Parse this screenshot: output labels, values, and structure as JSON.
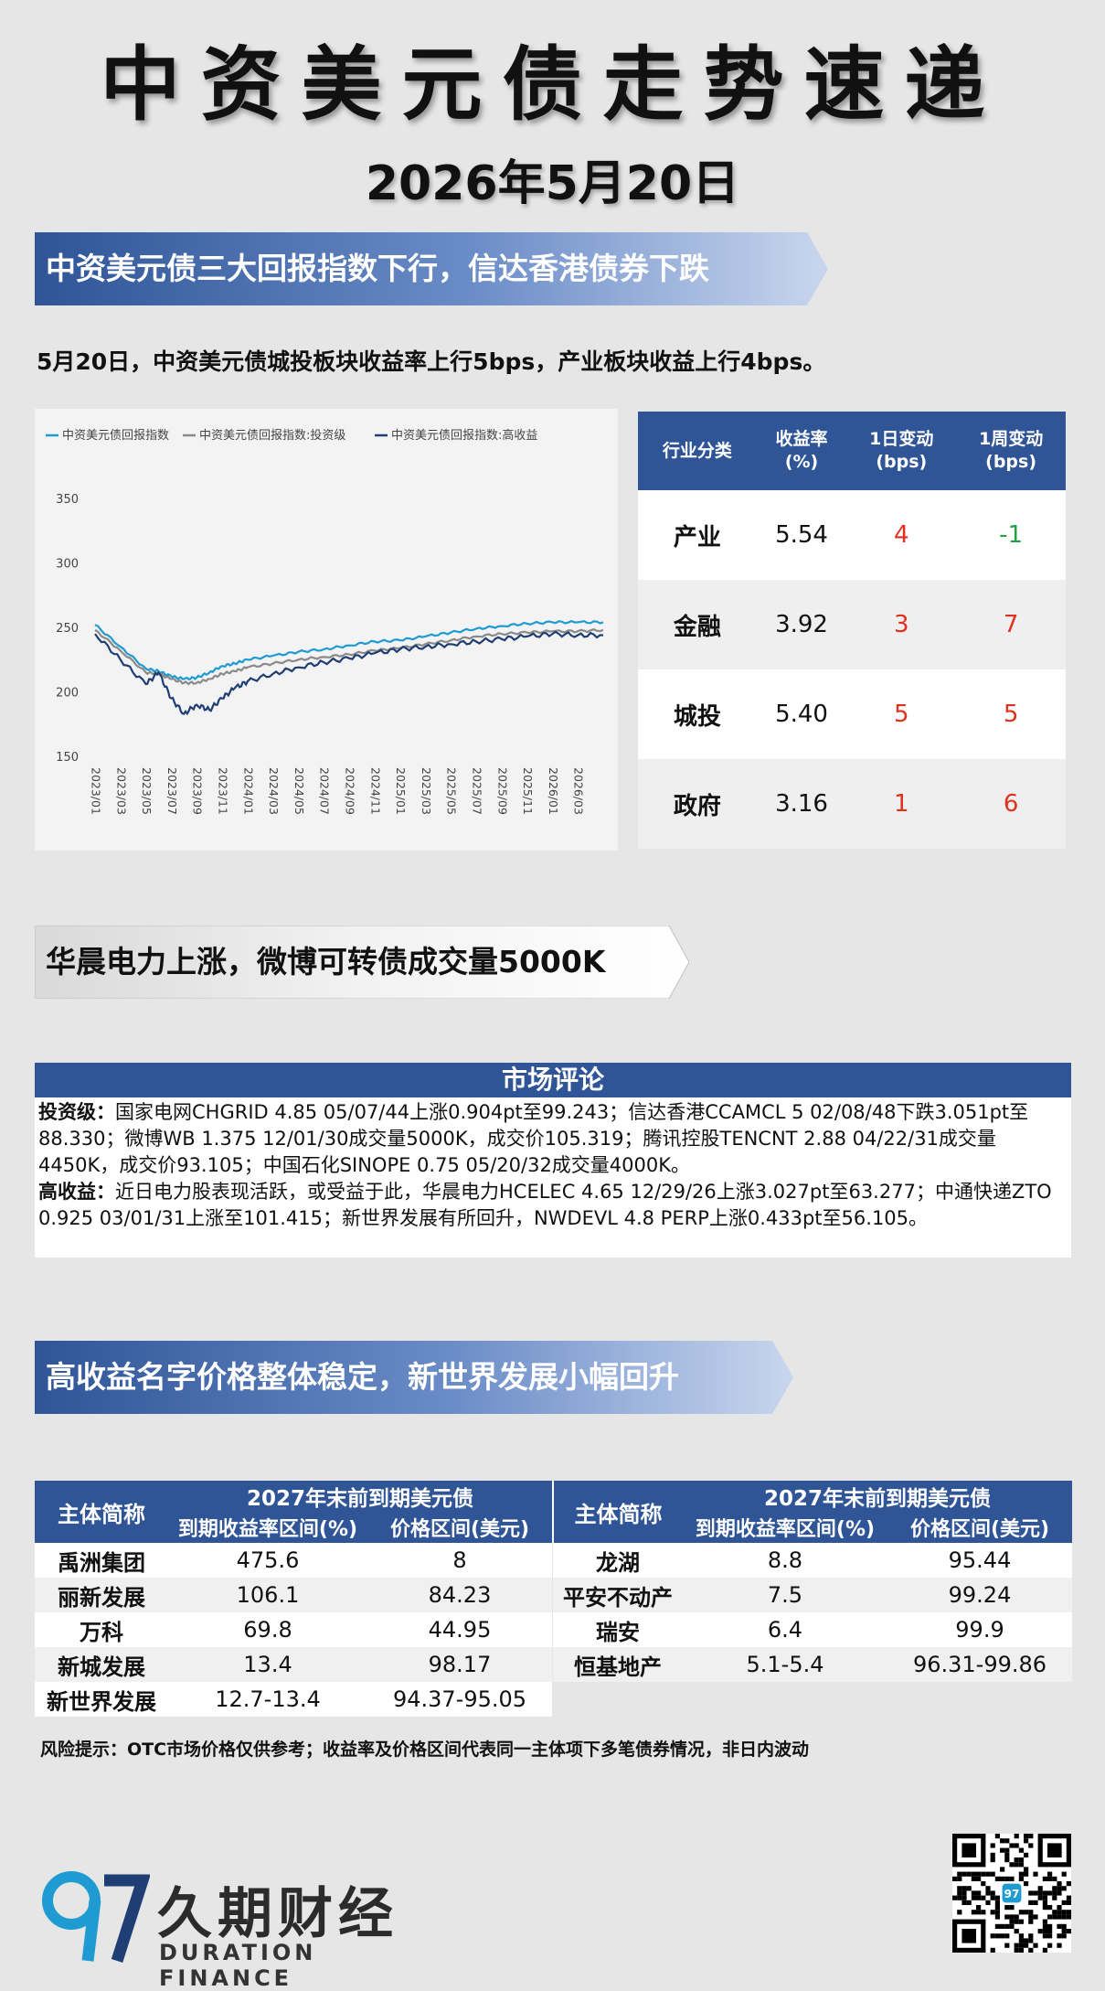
{
  "header": {
    "title": "中资美元债走势速递",
    "date": "2026年5月20日"
  },
  "section1": {
    "banner": "中资美元债三大回报指数下行，信达香港债券下跌",
    "summary": "5月20日，中资美元债城投板块收益率上行5bps，产业板块收益上行4bps。"
  },
  "chart_data": {
    "type": "line",
    "legend_placement": "top",
    "grid": false,
    "ylim": [
      150,
      350
    ],
    "y_ticks": [
      "350",
      "300",
      "250",
      "200",
      "150"
    ],
    "x_ticks": [
      "2023/01",
      "2023/03",
      "2023/05",
      "2023/07",
      "2023/09",
      "2023/11",
      "2024/01",
      "2024/03",
      "2024/05",
      "2024/07",
      "2024/09",
      "2024/11",
      "2025/01",
      "2025/03",
      "2025/05",
      "2025/07",
      "2025/09",
      "2025/11",
      "2026/01",
      "2026/03"
    ],
    "x": [
      "2023/01",
      "2023/03",
      "2023/05",
      "2023/06",
      "2023/07",
      "2023/08",
      "2023/09",
      "2023/10",
      "2023/11",
      "2023/12",
      "2024/01",
      "2024/03",
      "2024/05",
      "2024/07",
      "2024/09",
      "2024/11",
      "2025/01",
      "2025/03",
      "2025/05",
      "2025/07",
      "2025/09",
      "2025/11",
      "2026/01",
      "2026/03",
      "2026/05"
    ],
    "series": [
      {
        "name": "中资美元债回报指数",
        "color": "#1f9bd1",
        "values": [
          252,
          235,
          218,
          216,
          212,
          210,
          211,
          215,
          220,
          222,
          225,
          228,
          231,
          233,
          236,
          239,
          240,
          243,
          246,
          249,
          251,
          253,
          254,
          254,
          254
        ]
      },
      {
        "name": "中资美元债回报指数:投资级",
        "color": "#8a8a8a",
        "values": [
          248,
          232,
          215,
          214,
          210,
          207,
          207,
          210,
          214,
          216,
          219,
          222,
          225,
          227,
          229,
          232,
          234,
          237,
          240,
          243,
          245,
          246,
          247,
          247,
          248
        ]
      },
      {
        "name": "中资美元债回报指数:高收益",
        "color": "#1f3e73",
        "values": [
          245,
          225,
          206,
          215,
          195,
          183,
          190,
          186,
          195,
          203,
          208,
          214,
          219,
          223,
          226,
          230,
          233,
          235,
          237,
          239,
          241,
          243,
          245,
          244,
          244
        ]
      }
    ]
  },
  "sector_table": {
    "headers": [
      "行业分类",
      "收益率\n(%)",
      "1日变动\n(bps)",
      "1周变动\n(bps)"
    ],
    "rows": [
      {
        "sector": "产业",
        "yield": "5.54",
        "d1": "4",
        "w1": "-1",
        "d1_dir": "up",
        "w1_dir": "down"
      },
      {
        "sector": "金融",
        "yield": "3.92",
        "d1": "3",
        "w1": "7",
        "d1_dir": "up",
        "w1_dir": "up"
      },
      {
        "sector": "城投",
        "yield": "5.40",
        "d1": "5",
        "w1": "5",
        "d1_dir": "up",
        "w1_dir": "up"
      },
      {
        "sector": "政府",
        "yield": "3.16",
        "d1": "1",
        "w1": "6",
        "d1_dir": "up",
        "w1_dir": "up"
      }
    ]
  },
  "section2": {
    "banner": "华晨电力上涨，微博可转债成交量5000K"
  },
  "commentary": {
    "title": "市场评论",
    "ig_label": "投资级：",
    "ig_text": "国家电网CHGRID 4.85 05/07/44上涨0.904pt至99.243；信达香港CCAMCL 5 02/08/48下跌3.051pt至88.330；微博WB 1.375 12/01/30成交量5000K，成交价105.319；腾讯控股TENCNT 2.88 04/22/31成交量4450K，成交价93.105；中国石化SINOPE 0.75 05/20/32成交量4000K。",
    "hy_label": "高收益：",
    "hy_text": "近日电力股表现活跃，或受益于此，华晨电力HCELEC 4.65 12/29/26上涨3.027pt至63.277；中通快递ZTO 0.925 03/01/31上涨至101.415；新世界发展有所回升，NWDEVL 4.8 PERP上涨0.433pt至56.105。"
  },
  "section3": {
    "banner": "高收益名字价格整体稳定，新世界发展小幅回升"
  },
  "bond_tables": {
    "name_header": "主体简称",
    "group_header": "2027年末前到期美元债",
    "yield_header": "到期收益率区间(%)",
    "price_header": "价格区间(美元)",
    "left_rows": [
      {
        "issuer": "禹洲集团",
        "yield": "475.6",
        "price": "8"
      },
      {
        "issuer": "丽新发展",
        "yield": "106.1",
        "price": "84.23"
      },
      {
        "issuer": "万科",
        "yield": "69.8",
        "price": "44.95"
      },
      {
        "issuer": "新城发展",
        "yield": "13.4",
        "price": "98.17"
      },
      {
        "issuer": "新世界发展",
        "yield": "12.7-13.4",
        "price": "94.37-95.05"
      }
    ],
    "right_rows": [
      {
        "issuer": "龙湖",
        "yield": "8.8",
        "price": "95.44"
      },
      {
        "issuer": "平安不动产",
        "yield": "7.5",
        "price": "99.24"
      },
      {
        "issuer": "瑞安",
        "yield": "6.4",
        "price": "99.9"
      },
      {
        "issuer": "恒基地产",
        "yield": "5.1-5.4",
        "price": "96.31-99.86"
      },
      {
        "issuer": "",
        "yield": "",
        "price": ""
      }
    ]
  },
  "risk_note": "风险提示：OTC市场价格仅供参考；收益率及价格区间代表同一主体项下多笔债券情况，非日内波动",
  "footer": {
    "logo_cn": "久期财经",
    "logo_en": "DURATION FINANCE",
    "logo_mark": "97"
  },
  "colors": {
    "navy": "#2f5597",
    "banner_grad": [
      "#2f5597",
      "#c9d6ee"
    ],
    "up": "#e0301e",
    "down": "#22a046"
  }
}
